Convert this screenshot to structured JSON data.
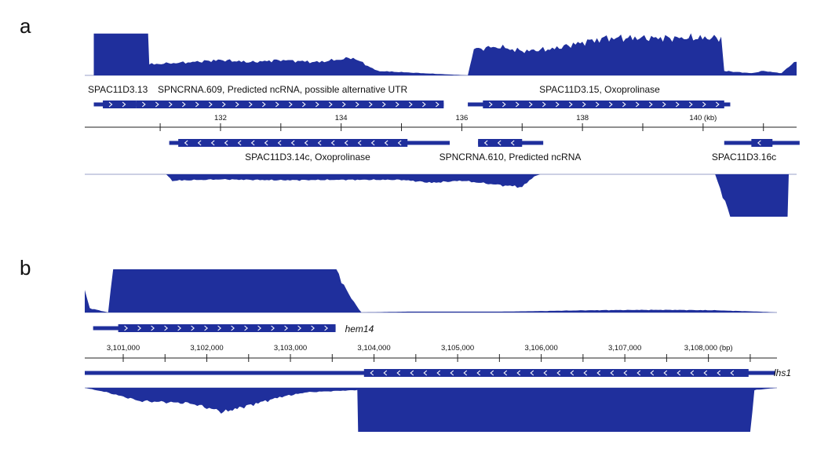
{
  "colors": {
    "coverage": "#1f2f9c",
    "gene": "#1f2f9c",
    "axis": "#222222",
    "baseline": "#9aa0c8"
  },
  "panel_a": {
    "letter": "a",
    "genes_top": [
      {
        "label": "SPAC11D3.13",
        "start": 129.9,
        "end": 130.6,
        "cds": [
          130.05,
          130.6
        ],
        "strand": "+"
      },
      {
        "label": "SPNCRNA.609, Predicted ncRNA, possible alternative UTR",
        "start": 130.6,
        "end": 135.7,
        "cds": [
          130.6,
          135.7
        ],
        "strand": "+"
      },
      {
        "label": "SPAC11D3.15, Oxoprolinase",
        "start": 136.1,
        "end": 140.45,
        "cds": [
          136.35,
          140.35
        ],
        "strand": "+"
      }
    ],
    "genes_bottom": [
      {
        "label": "SPAC11D3.14c, Oxoprolinase",
        "start": 131.15,
        "end": 135.8,
        "cds": [
          131.3,
          135.1
        ],
        "strand": "-"
      },
      {
        "label": "SPNCRNA.610, Predicted ncRNA",
        "start": 136.27,
        "end": 137.35,
        "cds": [
          136.27,
          137.0
        ],
        "strand": "-"
      },
      {
        "label": "SPAC11D3.16c",
        "start": 140.35,
        "end": 141.6,
        "cds": [
          140.8,
          141.15
        ],
        "strand": "-"
      }
    ],
    "axis": {
      "min": 129.75,
      "max": 141.55,
      "ticks": [
        131,
        132,
        133,
        134,
        135,
        136,
        137,
        138,
        139,
        140,
        141
      ],
      "tick_labels": [
        {
          "pos": 132,
          "text": "132"
        },
        {
          "pos": 134,
          "text": "134"
        },
        {
          "pos": 136,
          "text": "136"
        },
        {
          "pos": 138,
          "text": "138"
        },
        {
          "pos": 140,
          "text": "140 (kb)"
        }
      ]
    },
    "coverage_plus": [
      [
        129.9,
        0.0
      ],
      [
        129.9,
        0.95
      ],
      [
        130.8,
        0.95
      ],
      [
        130.82,
        0.25
      ],
      [
        131.5,
        0.3
      ],
      [
        132.0,
        0.35
      ],
      [
        132.5,
        0.3
      ],
      [
        133.0,
        0.35
      ],
      [
        133.6,
        0.3
      ],
      [
        134.2,
        0.4
      ],
      [
        134.4,
        0.25
      ],
      [
        134.6,
        0.1
      ],
      [
        135.2,
        0.06
      ],
      [
        135.8,
        0.02
      ],
      [
        136.1,
        0.0
      ],
      [
        136.2,
        0.6
      ],
      [
        136.6,
        0.65
      ],
      [
        137.0,
        0.55
      ],
      [
        137.5,
        0.6
      ],
      [
        138.0,
        0.75
      ],
      [
        138.4,
        0.85
      ],
      [
        138.6,
        0.85
      ],
      [
        140.3,
        0.85
      ],
      [
        140.35,
        0.1
      ],
      [
        140.8,
        0.05
      ],
      [
        141.0,
        0.1
      ],
      [
        141.3,
        0.05
      ],
      [
        141.55,
        0.35
      ]
    ],
    "coverage_minus": [
      [
        131.1,
        0.0
      ],
      [
        131.2,
        0.15
      ],
      [
        132.0,
        0.12
      ],
      [
        133.0,
        0.14
      ],
      [
        134.0,
        0.13
      ],
      [
        135.0,
        0.13
      ],
      [
        135.5,
        0.2
      ],
      [
        136.0,
        0.15
      ],
      [
        136.6,
        0.25
      ],
      [
        137.0,
        0.3
      ],
      [
        137.2,
        0.05
      ],
      [
        137.3,
        0.0
      ],
      [
        140.2,
        0.0
      ],
      [
        140.45,
        1.0
      ],
      [
        141.4,
        1.0
      ],
      [
        141.42,
        0.0
      ]
    ]
  },
  "panel_b": {
    "letter": "b",
    "genes_top": [
      {
        "label": "hem14",
        "start": 3100640,
        "end": 3103540,
        "cds": [
          3100940,
          3103540
        ],
        "strand": "+"
      }
    ],
    "genes_bottom": [
      {
        "label": "lhs1",
        "start": 3100540,
        "end": 3108800,
        "cds": [
          3103880,
          3108480
        ],
        "strand": "-"
      }
    ],
    "axis": {
      "min": 3100540,
      "max": 3108820,
      "ticks": [
        3101000,
        3101500,
        3102000,
        3102500,
        3103000,
        3103500,
        3104000,
        3104500,
        3105000,
        3105500,
        3106000,
        3106500,
        3107000,
        3107500,
        3108000,
        3108500
      ],
      "tick_labels": [
        {
          "pos": 3101000,
          "text": "3,101,000"
        },
        {
          "pos": 3102000,
          "text": "3,102,000"
        },
        {
          "pos": 3103000,
          "text": "3,103,000"
        },
        {
          "pos": 3104000,
          "text": "3,104,000"
        },
        {
          "pos": 3105000,
          "text": "3,105,000"
        },
        {
          "pos": 3106000,
          "text": "3,106,000"
        },
        {
          "pos": 3107000,
          "text": "3,107,000"
        },
        {
          "pos": 3108000,
          "text": "3,108,000 (bp)"
        }
      ]
    },
    "coverage_plus": [
      [
        3100540,
        0.5
      ],
      [
        3100600,
        0.1
      ],
      [
        3100820,
        0.0
      ],
      [
        3100880,
        1.0
      ],
      [
        3103550,
        1.0
      ],
      [
        3103700,
        0.4
      ],
      [
        3103850,
        0.0
      ],
      [
        3104400,
        0.02
      ],
      [
        3105500,
        0.02
      ],
      [
        3105900,
        0.03
      ],
      [
        3106500,
        0.05
      ],
      [
        3107200,
        0.06
      ],
      [
        3107600,
        0.06
      ],
      [
        3108100,
        0.05
      ],
      [
        3108600,
        0.02
      ],
      [
        3108820,
        0.0
      ]
    ],
    "coverage_minus": [
      [
        3100540,
        0.0
      ],
      [
        3100800,
        0.1
      ],
      [
        3101200,
        0.3
      ],
      [
        3101800,
        0.35
      ],
      [
        3102200,
        0.55
      ],
      [
        3102500,
        0.4
      ],
      [
        3102900,
        0.2
      ],
      [
        3103200,
        0.1
      ],
      [
        3103800,
        0.05
      ],
      [
        3103810,
        1.0
      ],
      [
        3108500,
        1.0
      ],
      [
        3108550,
        0.05
      ],
      [
        3108820,
        0.0
      ]
    ]
  }
}
